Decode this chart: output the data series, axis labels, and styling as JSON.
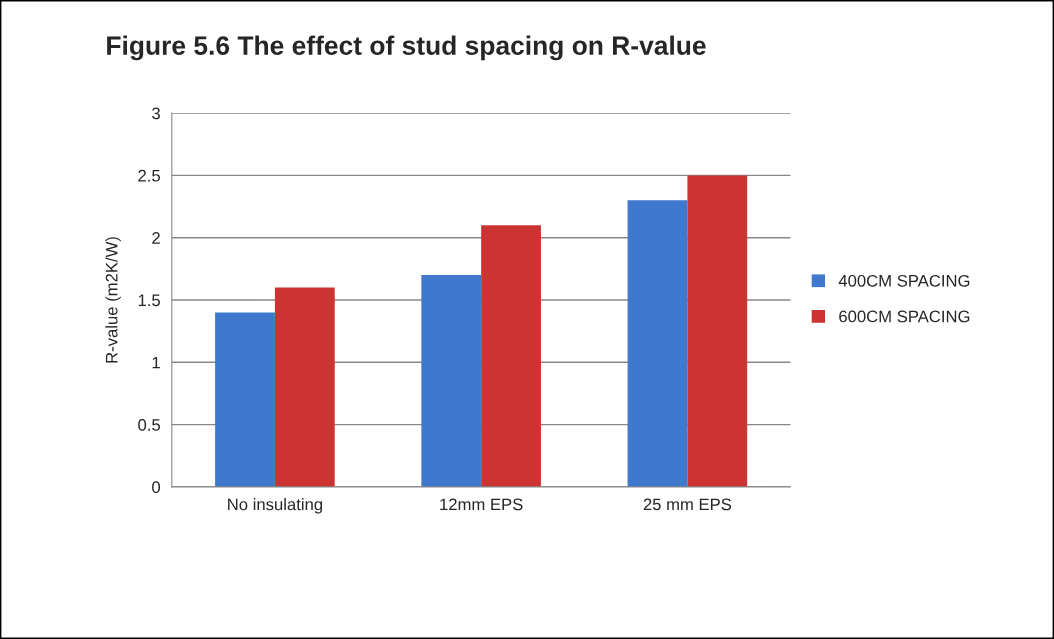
{
  "chart_data": {
    "type": "bar",
    "title": "Figure 5.6 The effect of stud spacing on R-value",
    "ylabel": "R-value (m2K/W)",
    "categories": [
      "No insulating",
      "12mm EPS",
      "25 mm EPS"
    ],
    "series": [
      {
        "name": "400CM SPACING",
        "color": "#3f78cc",
        "values": [
          1.4,
          1.7,
          2.3
        ]
      },
      {
        "name": "600CM SPACING",
        "color": "#cc3434",
        "values": [
          1.6,
          2.1,
          2.5
        ]
      }
    ],
    "ylim": [
      0,
      3
    ],
    "yticks": [
      0,
      0.5,
      1,
      1.5,
      2,
      2.5,
      3
    ],
    "grid": "y",
    "legend": "right"
  }
}
